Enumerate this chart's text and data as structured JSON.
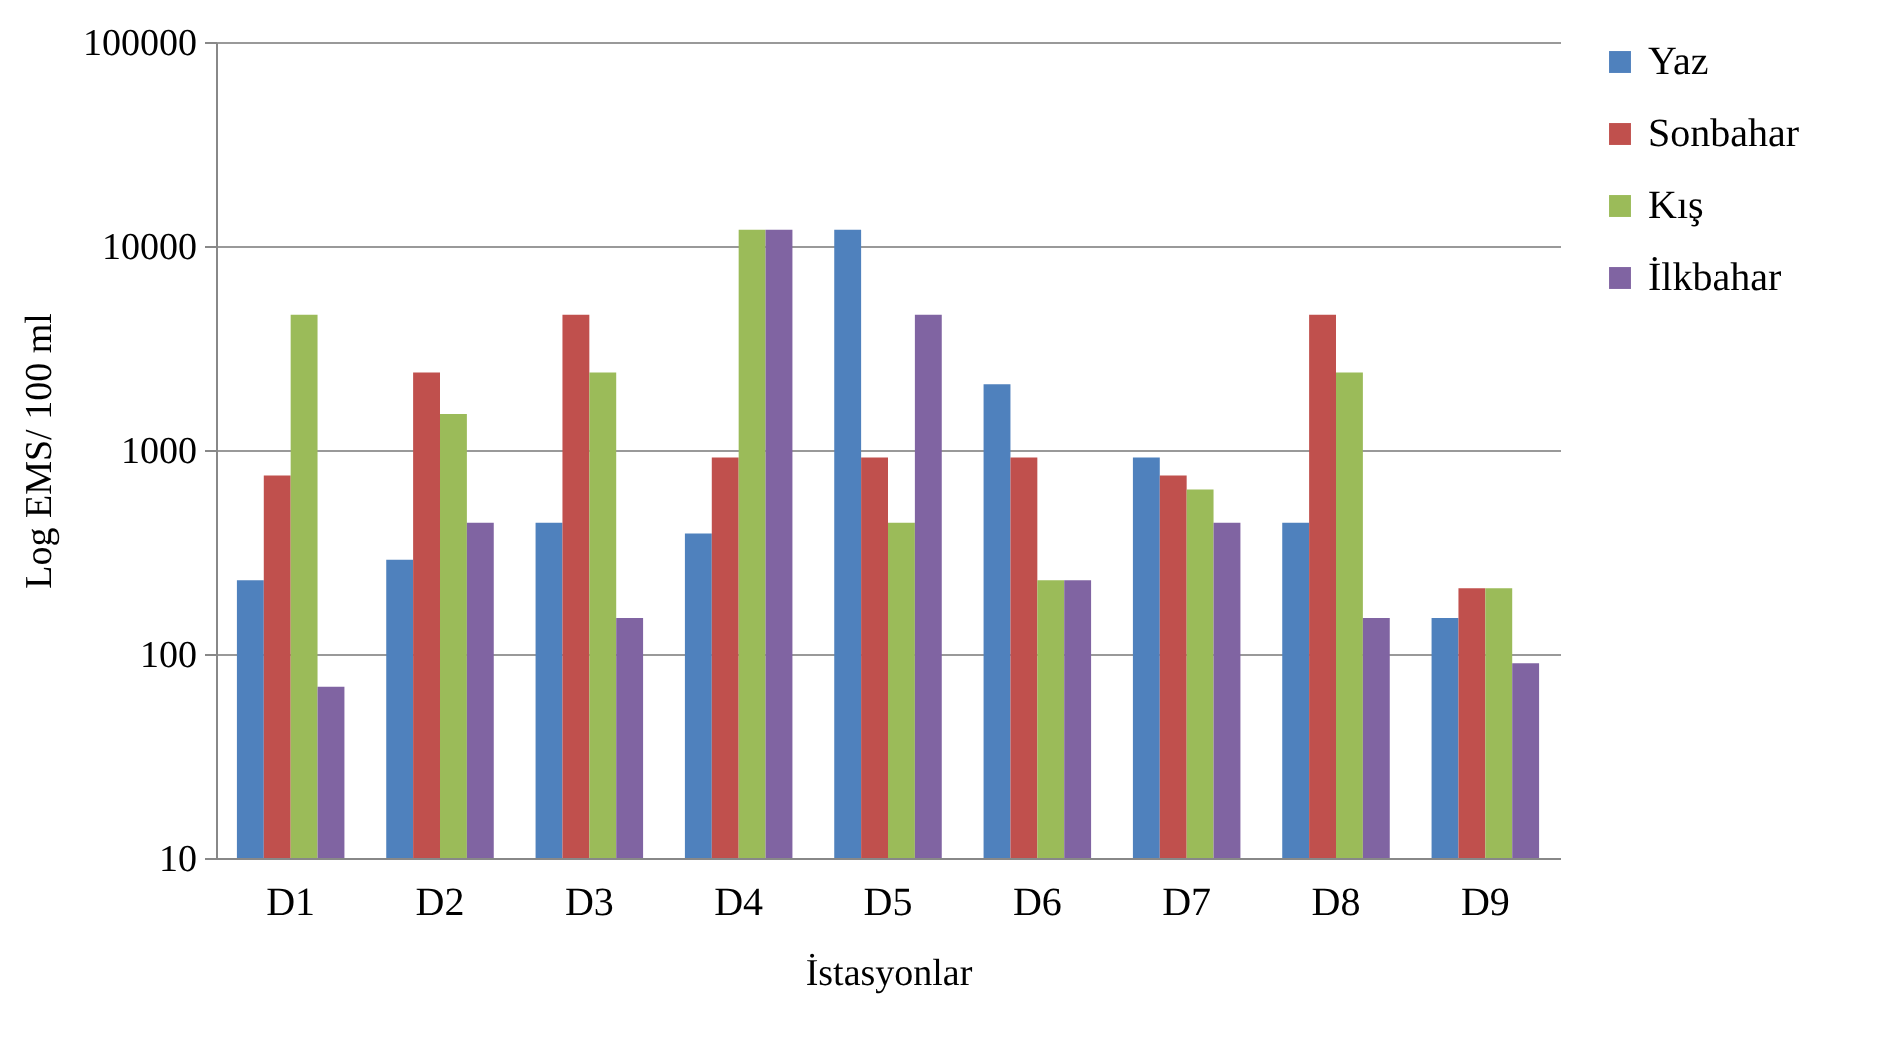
{
  "chart_data": {
    "type": "bar",
    "xlabel": "İstasyonlar",
    "ylabel": "Log EMS/ 100 ml",
    "categories": [
      "D1",
      "D2",
      "D3",
      "D4",
      "D5",
      "D6",
      "D7",
      "D8",
      "D9"
    ],
    "series": [
      {
        "name": "Yaz",
        "color": "#4f81bd",
        "values": [
          230,
          290,
          440,
          390,
          12000,
          2100,
          920,
          440,
          150
        ]
      },
      {
        "name": "Sonbahar",
        "color": "#c0504d",
        "values": [
          750,
          2400,
          4600,
          920,
          920,
          920,
          750,
          4600,
          210
        ]
      },
      {
        "name": "Kış",
        "color": "#9bbb59",
        "values": [
          4600,
          1500,
          2400,
          12000,
          440,
          230,
          640,
          2400,
          210
        ]
      },
      {
        "name": "İlkbahar",
        "color": "#8064a2",
        "values": [
          69,
          440,
          150,
          12000,
          4600,
          230,
          440,
          150,
          90
        ]
      }
    ],
    "log": "y",
    "ylim": [
      10,
      100000
    ],
    "yticks": [
      10,
      100,
      1000,
      10000,
      100000
    ],
    "grid": "y",
    "legend": "right"
  }
}
